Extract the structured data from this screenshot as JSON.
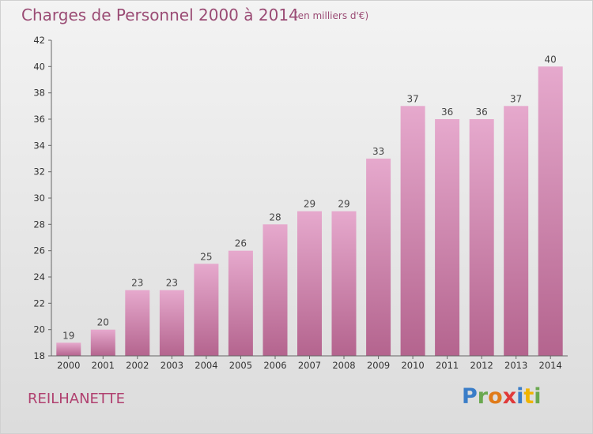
{
  "title": "Charges de Personnel 2000 à 2014",
  "subtitle": "(en milliers d'€)",
  "commune": "REILHANETTE",
  "logo_text": "Proxiti",
  "colors": {
    "title": "#9a4b74",
    "commune": "#b0406f",
    "bar_top": "#e6a9cd",
    "bar_bottom": "#b4648e",
    "axis": "#666666",
    "logo": [
      "#3a7dc8",
      "#6aa84f",
      "#e07b1a",
      "#e03a3a",
      "#3a7dc8",
      "#f0b400",
      "#6aa84f"
    ]
  },
  "chart_data": {
    "type": "bar",
    "categories": [
      "2000",
      "2001",
      "2002",
      "2003",
      "2004",
      "2005",
      "2006",
      "2007",
      "2008",
      "2009",
      "2010",
      "2011",
      "2012",
      "2013",
      "2014"
    ],
    "values": [
      19,
      20,
      23,
      23,
      25,
      26,
      28,
      29,
      29,
      33,
      37,
      36,
      36,
      37,
      40
    ],
    "title": "Charges de Personnel 2000 à 2014",
    "xlabel": "",
    "ylabel": "",
    "ylim": [
      18,
      42
    ],
    "yticks": [
      18,
      20,
      22,
      24,
      26,
      28,
      30,
      32,
      34,
      36,
      38,
      40,
      42
    ],
    "grid": false,
    "legend": "none",
    "data_labels": true
  }
}
